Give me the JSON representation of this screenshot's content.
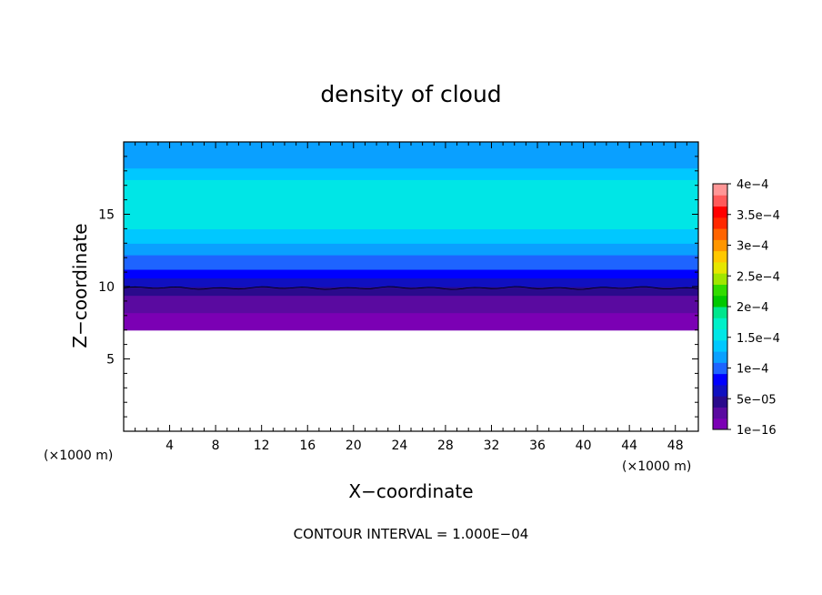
{
  "chart_data": {
    "type": "heatmap",
    "title": "density of cloud",
    "xlabel": "X−coordinate",
    "ylabel": "Z−coordinate",
    "x_unit": "(×1000 m)",
    "z_unit": "(×1000 m)",
    "xlim": [
      0,
      50
    ],
    "zlim": [
      0,
      20
    ],
    "x_ticks": [
      {
        "value": 4,
        "label": "4"
      },
      {
        "value": 8,
        "label": "8"
      },
      {
        "value": 12,
        "label": "12"
      },
      {
        "value": 16,
        "label": "16"
      },
      {
        "value": 20,
        "label": "20"
      },
      {
        "value": 24,
        "label": "24"
      },
      {
        "value": 28,
        "label": "28"
      },
      {
        "value": 32,
        "label": "32"
      },
      {
        "value": 36,
        "label": "36"
      },
      {
        "value": 40,
        "label": "40"
      },
      {
        "value": 44,
        "label": "44"
      },
      {
        "value": 48,
        "label": "48"
      }
    ],
    "z_ticks": [
      {
        "value": 5,
        "label": "5"
      },
      {
        "value": 10,
        "label": "10"
      },
      {
        "value": 15,
        "label": "15"
      }
    ],
    "colorbar": {
      "levels": [
        {
          "value": 1e-16,
          "label": "1e−16"
        },
        {
          "value": 5e-05,
          "label": "5e−05"
        },
        {
          "value": 0.0001,
          "label": "1e−4"
        },
        {
          "value": 0.00015,
          "label": "1.5e−4"
        },
        {
          "value": 0.0002,
          "label": "2e−4"
        },
        {
          "value": 0.00025,
          "label": "2.5e−4"
        },
        {
          "value": 0.0003,
          "label": "3e−4"
        },
        {
          "value": 0.00035,
          "label": "3.5e−4"
        },
        {
          "value": 0.0004,
          "label": "4e−4"
        }
      ],
      "colors": [
        "#7b00b4",
        "#5a0aa0",
        "#2a0a8c",
        "#1010c0",
        "#0000ff",
        "#1e64ff",
        "#0aa0ff",
        "#00c8ff",
        "#00e6e6",
        "#00f0c8",
        "#00e68c",
        "#00c800",
        "#32dc00",
        "#a0e600",
        "#e6e600",
        "#ffc800",
        "#ff9600",
        "#ff6400",
        "#ff2800",
        "#ff0000",
        "#ff5a5a",
        "#ff9696"
      ]
    },
    "z_profile": [
      {
        "z": 7.0,
        "value": 1e-07
      },
      {
        "z": 7.6,
        "value": 5e-06
      },
      {
        "z": 8.2,
        "value": 2e-05
      },
      {
        "z": 8.8,
        "value": 3.5e-05
      },
      {
        "z": 9.4,
        "value": 5e-05
      },
      {
        "z": 10.0,
        "value": 7e-05
      },
      {
        "z": 10.6,
        "value": 9e-05
      },
      {
        "z": 11.2,
        "value": 0.000105
      },
      {
        "z": 12.2,
        "value": 0.00012
      },
      {
        "z": 13.0,
        "value": 0.000135
      },
      {
        "z": 14.0,
        "value": 0.00015
      },
      {
        "z": 16.6,
        "value": 0.00015
      },
      {
        "z": 17.4,
        "value": 0.000135
      },
      {
        "z": 18.2,
        "value": 0.000115
      },
      {
        "z": 20.0,
        "value": 0.000105
      }
    ],
    "contour_line_z": 9.9,
    "cloud_base_z": 7.0,
    "grid": false,
    "legend": "colorbar-right"
  },
  "footer": "CONTOUR INTERVAL = 1.000E−04"
}
